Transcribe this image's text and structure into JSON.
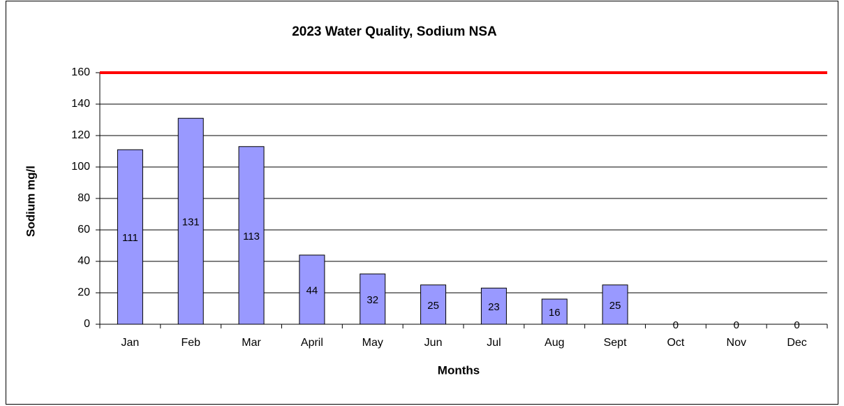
{
  "chart_data": {
    "type": "bar",
    "title": "2023 Water Quality, Sodium  NSA",
    "x_label": "Months",
    "y_label": "Sodium mg/l",
    "categories": [
      "Jan",
      "Feb",
      "Mar",
      "April",
      "May",
      "Jun",
      "Jul",
      "Aug",
      "Sept",
      "Oct",
      "Nov",
      "Dec"
    ],
    "values": [
      111,
      131,
      113,
      44,
      32,
      25,
      23,
      16,
      25,
      0,
      0,
      0
    ],
    "color": "#9999ff",
    "ylim": [
      0,
      160
    ],
    "yticks": [
      0,
      20,
      40,
      60,
      80,
      100,
      120,
      140,
      160
    ],
    "grid": true,
    "threshold": {
      "value": 160,
      "color": "#ff0000"
    }
  }
}
